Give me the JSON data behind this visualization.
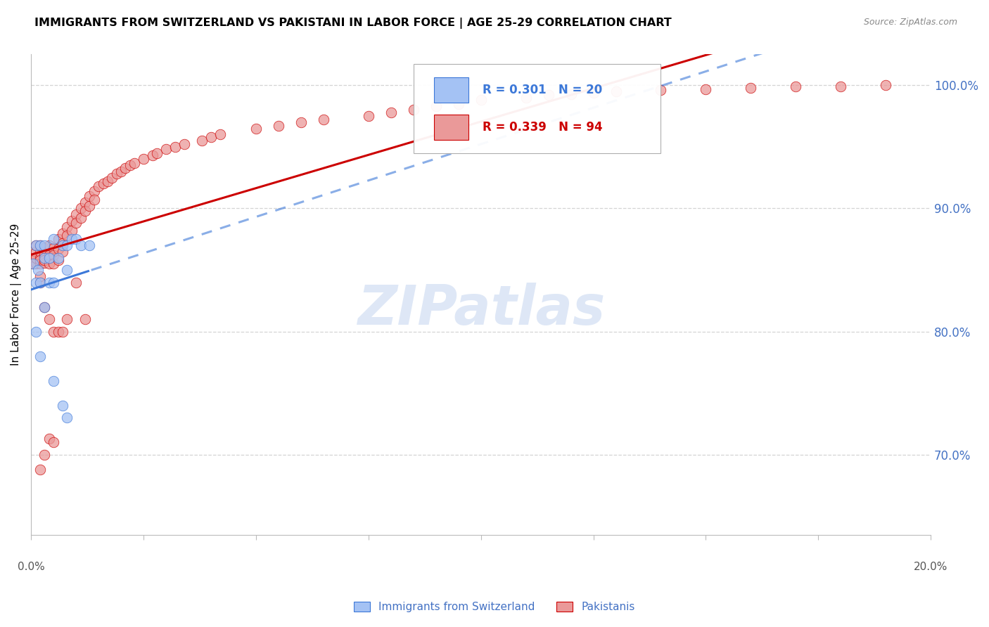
{
  "title": "IMMIGRANTS FROM SWITZERLAND VS PAKISTANI IN LABOR FORCE | AGE 25-29 CORRELATION CHART",
  "source": "Source: ZipAtlas.com",
  "ylabel": "In Labor Force | Age 25-29",
  "legend_label_swiss": "Immigrants from Switzerland",
  "legend_label_pak": "Pakistanis",
  "swiss_color": "#a4c2f4",
  "pak_color": "#ea9999",
  "swiss_line_color": "#3c78d8",
  "pak_line_color": "#cc0000",
  "swiss_R": 0.301,
  "swiss_N": 20,
  "pak_R": 0.339,
  "pak_N": 94,
  "xmin": 0.0,
  "xmax": 0.2,
  "ymin": 0.635,
  "ymax": 1.025,
  "ytick_positions": [
    0.7,
    0.8,
    0.9,
    1.0
  ],
  "ytick_labels": [
    "70.0%",
    "80.0%",
    "90.0%",
    "100.0%"
  ],
  "watermark_text": "ZIPatlas",
  "watermark_color": "#c8d8f0",
  "background_color": "#ffffff",
  "grid_color": "#d0d0d0",
  "title_color": "#000000",
  "source_color": "#888888",
  "tick_color": "#4472c4",
  "swiss_x": [
    0.0005,
    0.001,
    0.001,
    0.0015,
    0.002,
    0.002,
    0.003,
    0.003,
    0.004,
    0.004,
    0.005,
    0.005,
    0.006,
    0.007,
    0.008,
    0.008,
    0.009,
    0.01,
    0.011,
    0.013
  ],
  "swiss_y": [
    0.855,
    0.87,
    0.84,
    0.85,
    0.87,
    0.84,
    0.87,
    0.86,
    0.86,
    0.84,
    0.875,
    0.84,
    0.86,
    0.87,
    0.87,
    0.85,
    0.875,
    0.875,
    0.87,
    0.87
  ],
  "swiss_extra_x": [
    0.001,
    0.002,
    0.003,
    0.005,
    0.007,
    0.008
  ],
  "swiss_extra_y": [
    0.8,
    0.78,
    0.82,
    0.76,
    0.74,
    0.73
  ],
  "pak_x": [
    0.0005,
    0.001,
    0.001,
    0.001,
    0.001,
    0.001,
    0.002,
    0.002,
    0.002,
    0.002,
    0.002,
    0.003,
    0.003,
    0.003,
    0.003,
    0.004,
    0.004,
    0.004,
    0.005,
    0.005,
    0.005,
    0.006,
    0.006,
    0.006,
    0.007,
    0.007,
    0.007,
    0.008,
    0.008,
    0.009,
    0.009,
    0.01,
    0.01,
    0.011,
    0.011,
    0.012,
    0.012,
    0.013,
    0.013,
    0.014,
    0.014,
    0.015,
    0.016,
    0.017,
    0.018,
    0.019,
    0.02,
    0.021,
    0.022,
    0.023,
    0.025,
    0.027,
    0.028,
    0.03,
    0.032,
    0.034,
    0.038,
    0.04,
    0.042,
    0.05,
    0.055,
    0.06,
    0.065,
    0.075,
    0.08,
    0.085,
    0.09,
    0.095,
    0.1,
    0.11,
    0.115,
    0.12,
    0.125,
    0.13,
    0.14,
    0.15,
    0.16,
    0.17,
    0.18,
    0.19,
    0.002,
    0.002,
    0.003,
    0.004,
    0.005,
    0.006,
    0.007,
    0.008,
    0.01,
    0.012,
    0.002,
    0.003,
    0.004,
    0.005
  ],
  "pak_y": [
    0.855,
    0.86,
    0.865,
    0.855,
    0.87,
    0.86,
    0.86,
    0.865,
    0.855,
    0.87,
    0.858,
    0.862,
    0.856,
    0.868,
    0.858,
    0.87,
    0.862,
    0.855,
    0.868,
    0.862,
    0.855,
    0.875,
    0.867,
    0.858,
    0.88,
    0.872,
    0.865,
    0.885,
    0.878,
    0.89,
    0.882,
    0.895,
    0.888,
    0.9,
    0.892,
    0.905,
    0.898,
    0.91,
    0.902,
    0.914,
    0.907,
    0.918,
    0.92,
    0.922,
    0.925,
    0.928,
    0.93,
    0.933,
    0.935,
    0.937,
    0.94,
    0.943,
    0.945,
    0.948,
    0.95,
    0.952,
    0.955,
    0.958,
    0.96,
    0.965,
    0.967,
    0.97,
    0.972,
    0.975,
    0.978,
    0.98,
    0.983,
    0.985,
    0.988,
    0.99,
    0.992,
    0.993,
    0.994,
    0.995,
    0.996,
    0.997,
    0.998,
    0.999,
    0.999,
    1.0,
    0.84,
    0.845,
    0.82,
    0.81,
    0.8,
    0.8,
    0.8,
    0.81,
    0.84,
    0.81,
    0.688,
    0.7,
    0.713,
    0.71
  ]
}
